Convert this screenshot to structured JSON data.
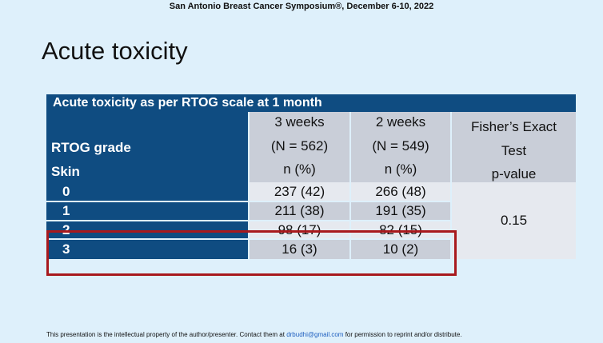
{
  "header": "San Antonio Breast Cancer Symposium®, December 6-10, 2022",
  "title": "Acute toxicity",
  "table": {
    "caption": "Acute toxicity as per RTOG scale at 1 month",
    "row_header_label": "RTOG grade",
    "row_group": "Skin",
    "columns": [
      {
        "lines": [
          "3 weeks",
          "(N = 562)",
          "n (%)"
        ]
      },
      {
        "lines": [
          "2 weeks",
          "(N = 549)",
          "n (%)"
        ]
      },
      {
        "lines": [
          "Fisher’s Exact",
          "Test",
          "p-value"
        ]
      }
    ],
    "rows": [
      [
        "0",
        "237 (42)",
        "266 (48)"
      ],
      [
        "1",
        "211 (38)",
        "191 (35)"
      ],
      [
        "2",
        "98 (17)",
        "82 (15)"
      ],
      [
        "3",
        "16 (3)",
        "10 (2)"
      ]
    ],
    "p_value": "0.15"
  },
  "footer": {
    "text_before": "This presentation is the intellectual property of the author/presenter. Contact them at",
    "email": "drbudhi@gmail.com",
    "text_after": "for permission to reprint and/or distribute."
  }
}
